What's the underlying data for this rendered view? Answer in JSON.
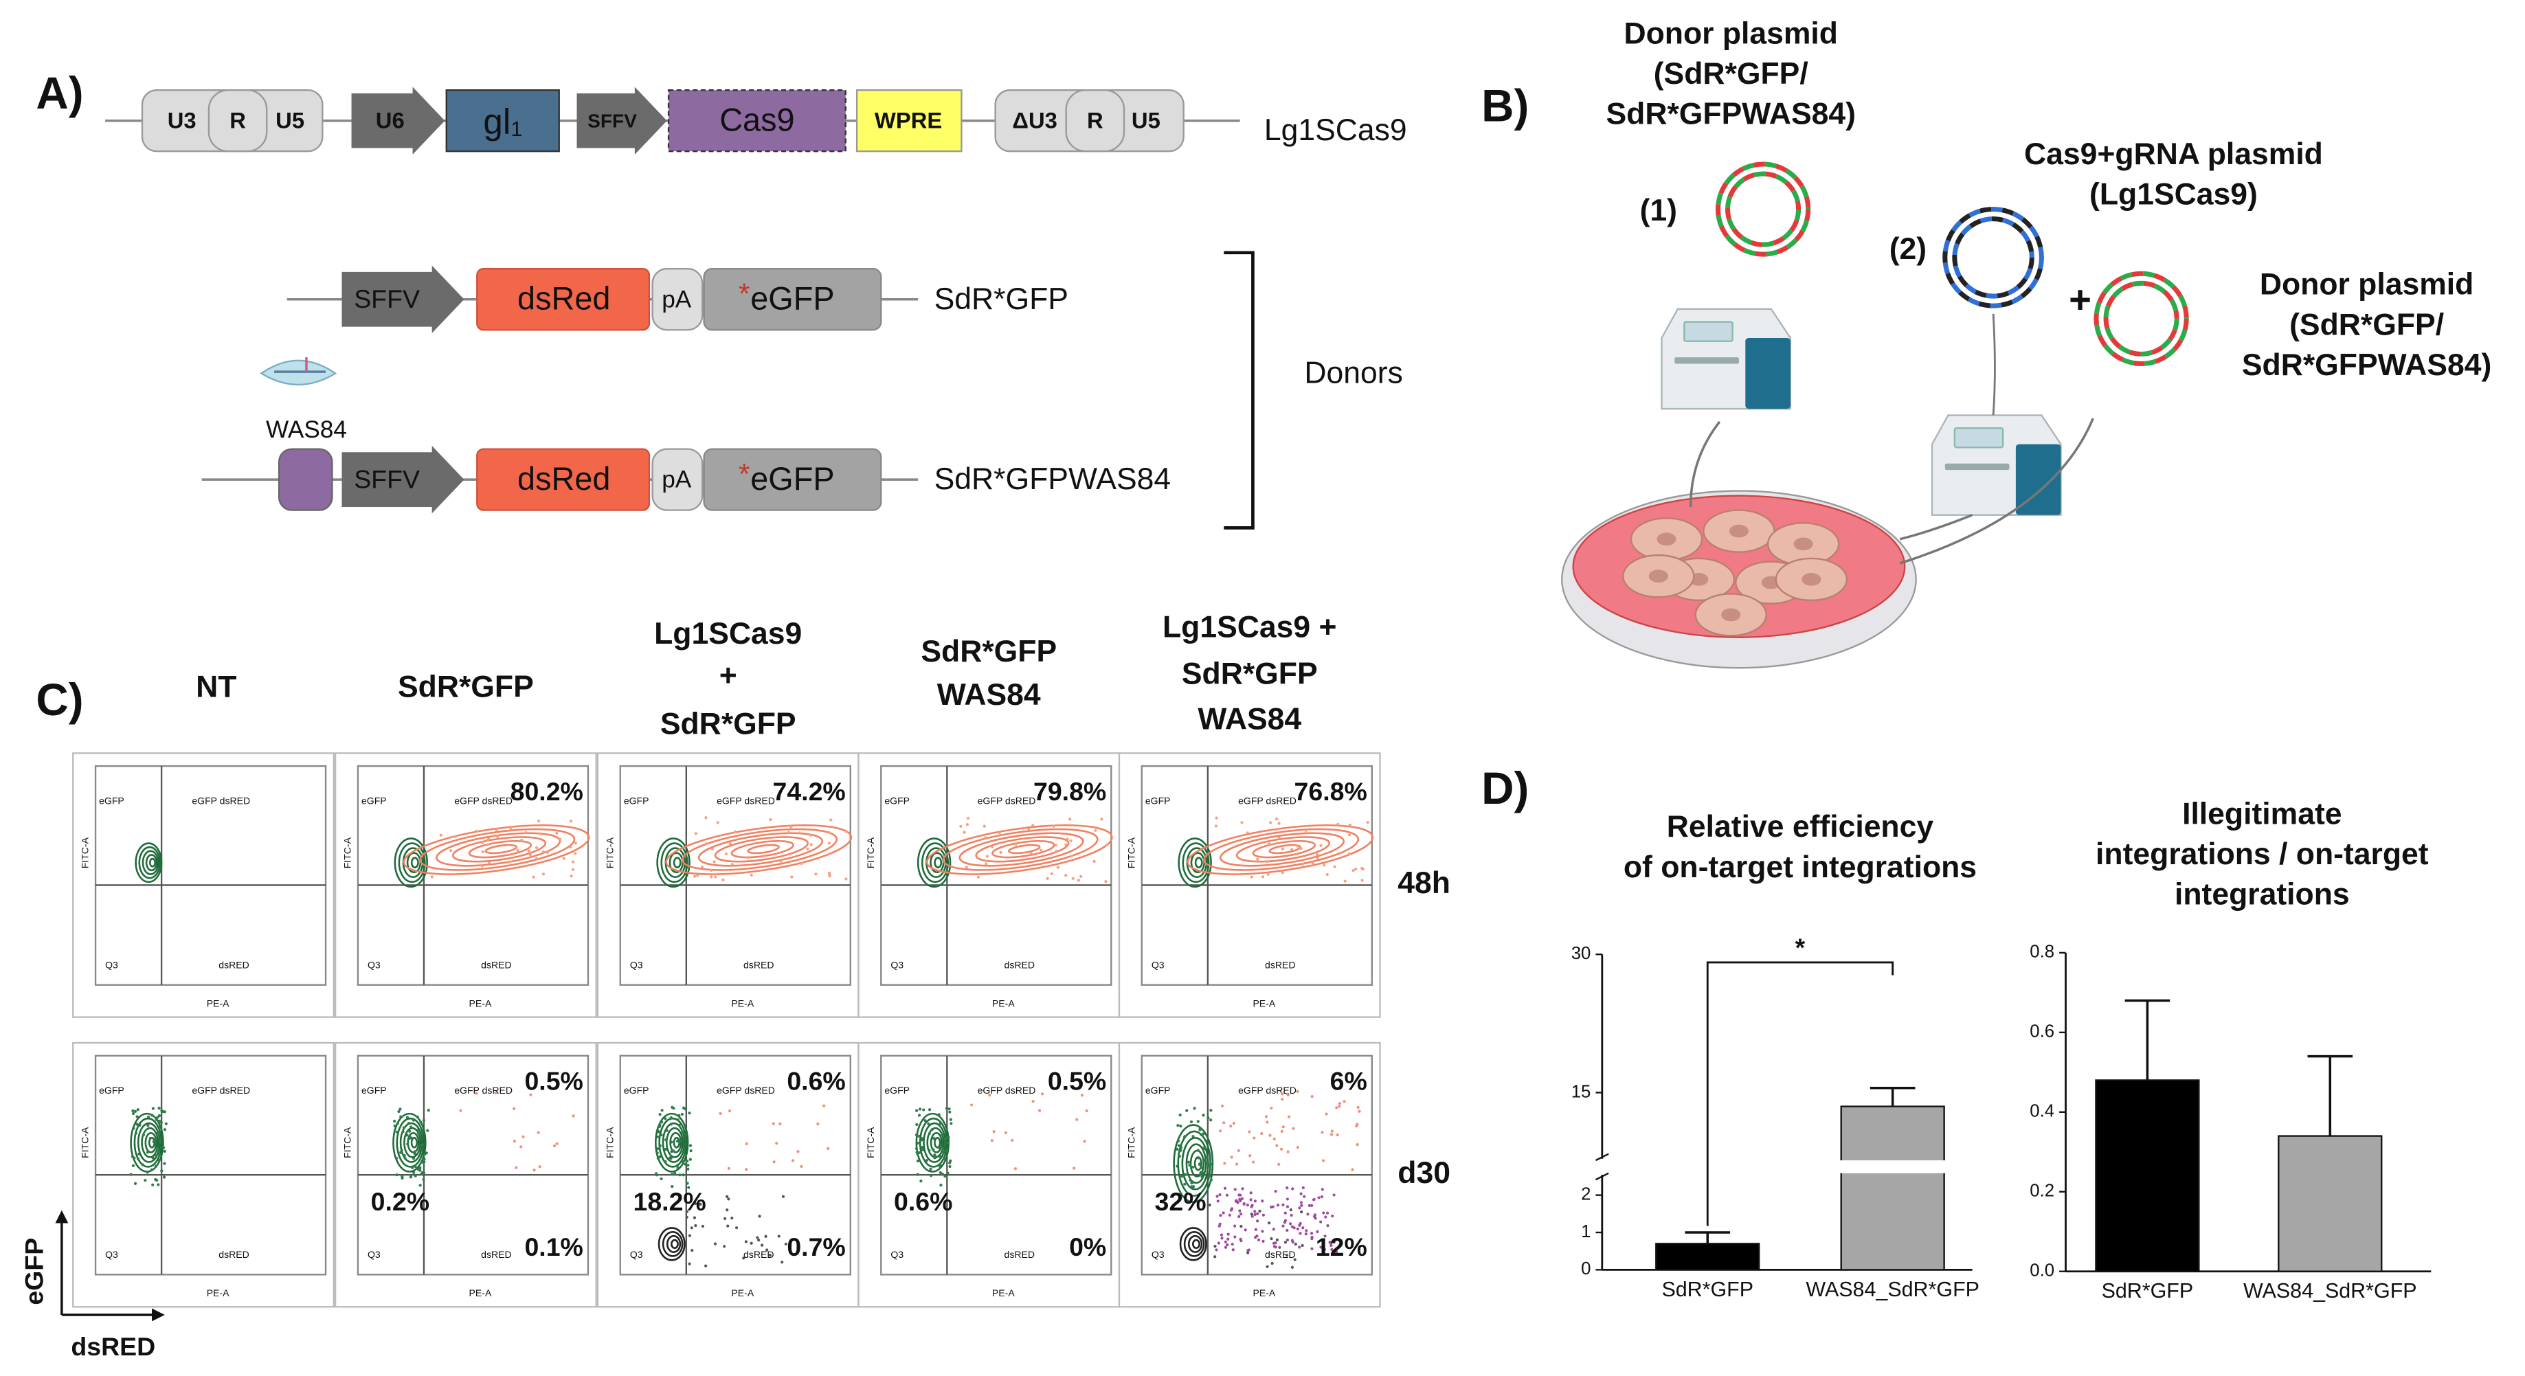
{
  "panel_a": {
    "label": "A)",
    "vector": {
      "name": "Lg1SCas9",
      "ltr5": [
        "U3",
        "R",
        "U5"
      ],
      "promoter1": "U6",
      "guide": {
        "main": "gl",
        "sub": "1"
      },
      "promoter2": "SFFV",
      "gene": "Cas9",
      "element": "WPRE",
      "ltr3": [
        "ΔU3",
        "R",
        "U5"
      ]
    },
    "donors": [
      {
        "name": "SdR*GFP",
        "promoter": "SFFV",
        "reporter": "dsRed",
        "polya": "pA",
        "mark": "*",
        "gene": "eGFP"
      },
      {
        "name": "SdR*GFPWAS84",
        "insert": "WAS84",
        "promoter": "SFFV",
        "reporter": "dsRed",
        "polya": "pA",
        "mark": "*",
        "gene": "eGFP"
      }
    ],
    "donors_label": "Donors"
  },
  "panel_b": {
    "label": "B)",
    "step1": "(1)",
    "step2": "(2)",
    "donor_plasmid": [
      "Donor plasmid",
      "(SdR*GFP/",
      "SdR*GFPWAS84)"
    ],
    "cas9_plasmid": [
      "Cas9+gRNA plasmid",
      "(Lg1SCas9)"
    ],
    "plus": "+"
  },
  "panel_c": {
    "label": "C)",
    "columns": [
      [
        "NT"
      ],
      [
        "SdR*GFP"
      ],
      [
        "Lg1SCas9",
        "+",
        "SdR*GFP"
      ],
      [
        "SdR*GFP",
        "WAS84"
      ],
      [
        "Lg1SCas9 +",
        "SdR*GFP",
        "WAS84"
      ]
    ],
    "rows": [
      {
        "name": "48h",
        "upper_right": [
          null,
          "80.2%",
          "74.2%",
          "79.8%",
          "76.8%"
        ]
      },
      {
        "name": "d30",
        "upper_right": [
          null,
          "0.5%",
          "0.6%",
          "0.5%",
          "6%"
        ],
        "lower_left": [
          null,
          "0.2%",
          "18.2%",
          "0.6%",
          "32%"
        ],
        "lower_right": [
          null,
          "0.1%",
          "0.7%",
          "0%",
          "12%"
        ]
      }
    ],
    "gate_labels": {
      "upper_left": "eGFP",
      "upper_right": "eGFP dsRED",
      "lower_left": "Q3",
      "lower_right": "dsRED"
    },
    "plot_axes": {
      "x": "PE-A",
      "y": "FITC-A"
    },
    "axes": {
      "y": "eGFP",
      "x": "dsRED"
    }
  },
  "panel_d": {
    "label": "D)"
  },
  "chart_data": [
    {
      "type": "bar",
      "title": [
        "Relative efficiency",
        "of on-target integrations"
      ],
      "categories": [
        "SdR*GFP",
        "WAS84_SdR*GFP"
      ],
      "values": [
        0.7,
        13.5
      ],
      "errors": [
        0.3,
        2
      ],
      "colors": [
        "#000000",
        "#a6a6a6"
      ],
      "ylim": [
        0,
        30
      ],
      "yticks": [
        0,
        1,
        2,
        15,
        30
      ],
      "ybreak": [
        2.5,
        8
      ],
      "significance": "*"
    },
    {
      "type": "bar",
      "title": [
        "Illegitimate",
        "integrations / on-target",
        "integrations"
      ],
      "categories": [
        "SdR*GFP",
        "WAS84_SdR*GFP"
      ],
      "values": [
        0.48,
        0.34
      ],
      "errors": [
        0.2,
        0.2
      ],
      "colors": [
        "#000000",
        "#a6a6a6"
      ],
      "ylim": [
        0,
        0.8
      ],
      "yticks": [
        {
          "value": 0,
          "label": "0.0"
        },
        0.2,
        0.4,
        0.6,
        0.8
      ]
    }
  ]
}
